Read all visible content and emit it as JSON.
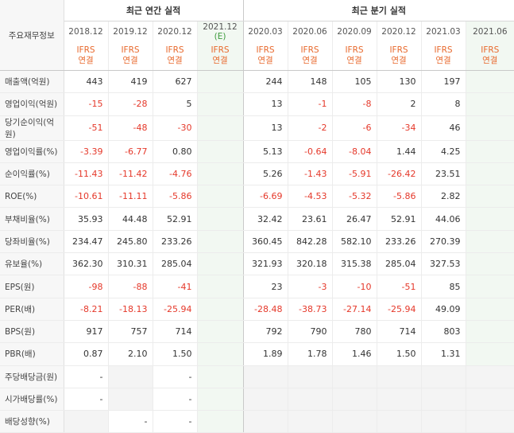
{
  "corner_label": "주요재무정보",
  "groups": {
    "annual": "최근 연간 실적",
    "quarterly": "최근 분기 실적"
  },
  "periods": [
    "2018.12",
    "2019.12",
    "2020.12",
    "2021.12",
    "2020.03",
    "2020.06",
    "2020.09",
    "2020.12",
    "2021.03",
    "2021.06"
  ],
  "estimate_marker": "(E)",
  "ifrs_label": [
    "IFRS",
    "연결"
  ],
  "rows": [
    {
      "label": "매출액(억원)",
      "values": [
        "443",
        "419",
        "627",
        "",
        "244",
        "148",
        "105",
        "130",
        "197",
        ""
      ]
    },
    {
      "label": "영업이익(억원)",
      "values": [
        "-15",
        "-28",
        "5",
        "",
        "13",
        "-1",
        "-8",
        "2",
        "8",
        ""
      ]
    },
    {
      "label": "당기순이익(억원)",
      "values": [
        "-51",
        "-48",
        "-30",
        "",
        "13",
        "-2",
        "-6",
        "-34",
        "46",
        ""
      ]
    },
    {
      "label": "영업이익률(%)",
      "values": [
        "-3.39",
        "-6.77",
        "0.80",
        "",
        "5.13",
        "-0.64",
        "-8.04",
        "1.44",
        "4.25",
        ""
      ]
    },
    {
      "label": "순이익률(%)",
      "values": [
        "-11.43",
        "-11.42",
        "-4.76",
        "",
        "5.26",
        "-1.43",
        "-5.91",
        "-26.42",
        "23.51",
        ""
      ]
    },
    {
      "label": "ROE(%)",
      "values": [
        "-10.61",
        "-11.11",
        "-5.86",
        "",
        "-6.69",
        "-4.53",
        "-5.32",
        "-5.86",
        "2.82",
        ""
      ]
    },
    {
      "label": "부채비율(%)",
      "values": [
        "35.93",
        "44.48",
        "52.91",
        "",
        "32.42",
        "23.61",
        "26.47",
        "52.91",
        "44.06",
        ""
      ]
    },
    {
      "label": "당좌비율(%)",
      "values": [
        "234.47",
        "245.80",
        "233.26",
        "",
        "360.45",
        "842.28",
        "582.10",
        "233.26",
        "270.39",
        ""
      ]
    },
    {
      "label": "유보율(%)",
      "values": [
        "362.30",
        "310.31",
        "285.04",
        "",
        "321.93",
        "320.18",
        "315.38",
        "285.04",
        "327.53",
        ""
      ]
    },
    {
      "label": "EPS(원)",
      "values": [
        "-98",
        "-88",
        "-41",
        "",
        "23",
        "-3",
        "-10",
        "-51",
        "85",
        ""
      ]
    },
    {
      "label": "PER(배)",
      "values": [
        "-8.21",
        "-18.13",
        "-25.94",
        "",
        "-28.48",
        "-38.73",
        "-27.14",
        "-25.94",
        "49.09",
        ""
      ]
    },
    {
      "label": "BPS(원)",
      "values": [
        "917",
        "757",
        "714",
        "",
        "792",
        "790",
        "780",
        "714",
        "803",
        ""
      ]
    },
    {
      "label": "PBR(배)",
      "values": [
        "0.87",
        "2.10",
        "1.50",
        "",
        "1.89",
        "1.78",
        "1.46",
        "1.50",
        "1.31",
        ""
      ]
    },
    {
      "label": "주당배당금(원)",
      "values": [
        "-",
        "",
        "-",
        "",
        "",
        "",
        "",
        "",
        "",
        ""
      ]
    },
    {
      "label": "시가배당률(%)",
      "values": [
        "-",
        "",
        "-",
        "",
        "",
        "",
        "",
        "",
        "",
        ""
      ]
    },
    {
      "label": "배당성향(%)",
      "values": [
        "",
        "-",
        "-",
        "",
        "",
        "",
        "",
        "",
        "",
        ""
      ]
    }
  ]
}
